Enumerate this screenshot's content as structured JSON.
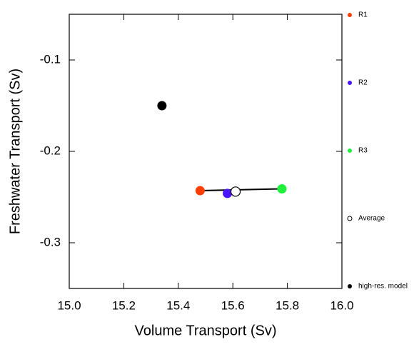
{
  "chart_data": {
    "type": "scatter",
    "x_label": "Volume Transport (Sv)",
    "y_label": "Freshwater Transport (Sv)",
    "xlim": [
      15.0,
      16.0
    ],
    "ylim": [
      -0.35,
      -0.05
    ],
    "xticks": [
      {
        "value": 15.0,
        "label": "15.0"
      },
      {
        "value": 15.2,
        "label": "15.2"
      },
      {
        "value": 15.4,
        "label": "15.4"
      },
      {
        "value": 15.6,
        "label": "15.6"
      },
      {
        "value": 15.8,
        "label": "15.8"
      },
      {
        "value": 16.0,
        "label": "16.0"
      }
    ],
    "yticks": [
      -0.1,
      -0.2,
      -0.3
    ],
    "legend": "right",
    "series": [
      {
        "name": "R1",
        "color": "#ff3d00",
        "x": [
          15.48
        ],
        "values": [
          -0.243
        ]
      },
      {
        "name": "R2",
        "color": "#4a14ff",
        "x": [
          15.58
        ],
        "values": [
          -0.246
        ]
      },
      {
        "name": "R3",
        "color": "#1ef03c",
        "x": [
          15.78
        ],
        "values": [
          -0.241
        ]
      },
      {
        "name": "Average",
        "color": "#000000",
        "hollow": true,
        "x": [
          15.61
        ],
        "values": [
          -0.244
        ]
      },
      {
        "name": "high-res. model",
        "color": "#000000",
        "x": [
          15.34
        ],
        "values": [
          -0.15
        ]
      }
    ]
  }
}
